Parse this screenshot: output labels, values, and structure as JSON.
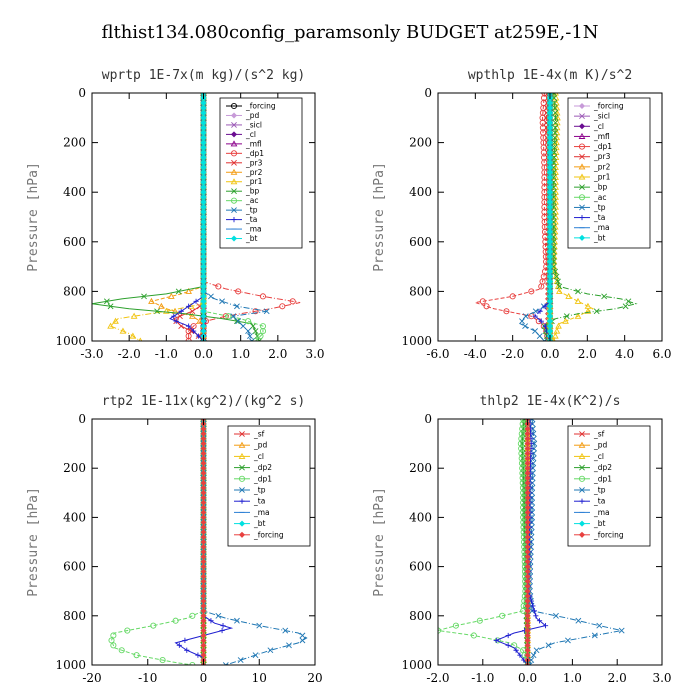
{
  "figure_title": "flthist134.080config_paramsonly  BUDGET at259E,-1N",
  "chart_data": [
    {
      "type": "line",
      "title": "wprtp  1E-7x(m kg)/(s^2 kg)",
      "ylabel": "Pressure [hPa]",
      "xlim": [
        -3.0,
        3.0
      ],
      "ylim": [
        1000,
        0
      ],
      "xticks": [
        "-3.0",
        "-2.0",
        "-1.0",
        "0.0",
        "1.0",
        "2.0",
        "3.0"
      ],
      "yticks": [
        "0",
        "200",
        "400",
        "600",
        "800",
        "1000"
      ],
      "legend_position": "top-right",
      "series": [
        {
          "name": "_forcing",
          "color": "#000000",
          "marker": "circle",
          "p": [
            0,
            1000
          ],
          "v": [
            0,
            0
          ]
        },
        {
          "name": "_pd",
          "color": "#c79ad8",
          "marker": "diamond",
          "p": [
            0,
            1000
          ],
          "v": [
            0,
            0
          ]
        },
        {
          "name": "_sicl",
          "color": "#9b59b6",
          "marker": "x",
          "p": [
            0,
            1000
          ],
          "v": [
            0,
            0
          ]
        },
        {
          "name": "_cl",
          "color": "#6a0d91",
          "marker": "diamond",
          "p": [
            0,
            1000
          ],
          "v": [
            0,
            0
          ]
        },
        {
          "name": "_mfl",
          "color": "#8b008b",
          "marker": "triangle",
          "p": [
            0,
            1000
          ],
          "v": [
            0,
            0
          ]
        },
        {
          "name": "_dp1",
          "color": "#e8403f",
          "marker": "circle",
          "p": [
            0,
            760,
            790,
            820,
            845,
            870,
            900,
            930,
            960,
            1000
          ],
          "v": [
            0,
            0,
            0.6,
            1.6,
            2.6,
            1.8,
            0.6,
            -0.2,
            -0.4,
            -0.4
          ]
        },
        {
          "name": "_pr3",
          "color": "#e03030",
          "marker": "x",
          "p": [
            0,
            850,
            880,
            910,
            940,
            970,
            1000
          ],
          "v": [
            0,
            0,
            -0.3,
            -0.8,
            -0.6,
            -0.2,
            0
          ]
        },
        {
          "name": "_pr2",
          "color": "#f39c12",
          "marker": "triangle",
          "p": [
            0,
            780,
            810,
            840,
            870,
            900,
            930,
            1000
          ],
          "v": [
            0,
            0,
            -0.6,
            -1.4,
            -1.0,
            -0.3,
            0,
            0
          ]
        },
        {
          "name": "_pr1",
          "color": "#f1c40f",
          "marker": "triangle",
          "p": [
            0,
            850,
            880,
            910,
            940,
            970,
            1000
          ],
          "v": [
            0,
            0,
            -1.0,
            -2.3,
            -2.5,
            -2.0,
            -1.7
          ]
        },
        {
          "name": "_bp",
          "color": "#2ca02c",
          "marker": "x",
          "p": [
            0,
            780,
            810,
            830,
            850,
            870,
            890,
            910,
            930,
            960,
            1000
          ],
          "v": [
            0,
            0,
            -1.0,
            -2.2,
            -3.0,
            -2.0,
            -0.5,
            0.5,
            1.3,
            1.4,
            1.5
          ]
        },
        {
          "name": "_ac",
          "color": "#66d966",
          "marker": "circle",
          "p": [
            0,
            880,
            910,
            940,
            970,
            1000
          ],
          "v": [
            0,
            0,
            1.0,
            1.6,
            1.6,
            1.4
          ]
        },
        {
          "name": "_tp",
          "color": "#1f77b4",
          "marker": "x",
          "p": [
            0,
            800,
            830,
            860,
            880,
            900,
            930,
            960,
            1000
          ],
          "v": [
            0,
            0,
            0.3,
            0.9,
            1.7,
            0.8,
            1.0,
            1.2,
            1.3
          ]
        },
        {
          "name": "_ta",
          "color": "#1f1fd0",
          "marker": "plus",
          "p": [
            0,
            820,
            850,
            880,
            910,
            940,
            1000
          ],
          "v": [
            0,
            0,
            -0.3,
            -0.6,
            -0.9,
            -0.4,
            0
          ]
        },
        {
          "name": "_ma",
          "color": "#2b7fd4",
          "marker": "dash",
          "p": [
            0,
            1000
          ],
          "v": [
            0,
            0
          ]
        },
        {
          "name": "_bt",
          "color": "#00e0e0",
          "marker": "diamond",
          "p": [
            0,
            1000
          ],
          "v": [
            0,
            0
          ]
        }
      ]
    },
    {
      "type": "line",
      "title": "wpthlp  1E-4x(m K)/s^2",
      "ylabel": "Pressure [hPa]",
      "xlim": [
        -6.0,
        6.0
      ],
      "ylim": [
        1000,
        0
      ],
      "xticks": [
        "-6.0",
        "-4.0",
        "-2.0",
        "0.0",
        "2.0",
        "4.0",
        "6.0"
      ],
      "yticks": [
        "0",
        "200",
        "400",
        "600",
        "800",
        "1000"
      ],
      "legend_position": "top-right",
      "series": [
        {
          "name": "_forcing",
          "color": "#c79ad8",
          "marker": "diamond",
          "p": [
            0,
            1000
          ],
          "v": [
            0,
            0
          ]
        },
        {
          "name": "_sicl",
          "color": "#9b59b6",
          "marker": "x",
          "p": [
            0,
            1000
          ],
          "v": [
            0,
            0
          ]
        },
        {
          "name": "_cl",
          "color": "#6a0d91",
          "marker": "diamond",
          "p": [
            0,
            1000
          ],
          "v": [
            0,
            0
          ]
        },
        {
          "name": "_mfl",
          "color": "#8b008b",
          "marker": "triangle",
          "p": [
            0,
            1000
          ],
          "v": [
            0,
            0
          ]
        },
        {
          "name": "_dp1",
          "color": "#e8403f",
          "marker": "circle",
          "p": [
            0,
            100,
            300,
            500,
            700,
            790,
            820,
            845,
            870,
            900,
            930,
            960,
            1000
          ],
          "v": [
            -0.3,
            -0.4,
            -0.3,
            -0.3,
            -0.2,
            -0.5,
            -2.0,
            -4.0,
            -3.0,
            -1.0,
            -0.4,
            -0.2,
            -0.1
          ]
        },
        {
          "name": "_pr3",
          "color": "#e03030",
          "marker": "x",
          "p": [
            0,
            100,
            300,
            500,
            700,
            1000
          ],
          "v": [
            -0.1,
            -0.2,
            -0.1,
            -0.1,
            -0.1,
            -0.1
          ]
        },
        {
          "name": "_pr2",
          "color": "#f39c12",
          "marker": "triangle",
          "p": [
            0,
            1000
          ],
          "v": [
            0,
            0
          ]
        },
        {
          "name": "_pr1",
          "color": "#f1c40f",
          "marker": "triangle",
          "p": [
            0,
            100,
            300,
            500,
            700,
            800,
            840,
            870,
            900,
            930,
            1000
          ],
          "v": [
            0.3,
            0.4,
            0.3,
            0.3,
            0.2,
            0.5,
            1.5,
            2.3,
            1.5,
            0.5,
            0.2
          ]
        },
        {
          "name": "_bp",
          "color": "#2ca02c",
          "marker": "x",
          "p": [
            0,
            100,
            300,
            500,
            700,
            780,
            810,
            830,
            850,
            870,
            890,
            910,
            940,
            970,
            1000
          ],
          "v": [
            0.2,
            0.3,
            0.2,
            0.2,
            0.2,
            0.5,
            2.0,
            3.8,
            4.6,
            3.5,
            1.5,
            0.3,
            -0.3,
            -0.2,
            -0.1
          ]
        },
        {
          "name": "_ac",
          "color": "#66d966",
          "marker": "circle",
          "p": [
            0,
            1000
          ],
          "v": [
            0,
            0
          ]
        },
        {
          "name": "_tp",
          "color": "#1f77b4",
          "marker": "x",
          "p": [
            0,
            840,
            870,
            900,
            930,
            960,
            1000
          ],
          "v": [
            0,
            0,
            -0.5,
            -1.3,
            -1.6,
            -0.8,
            -0.3
          ]
        },
        {
          "name": "_ta",
          "color": "#1f1fd0",
          "marker": "plus",
          "p": [
            0,
            840,
            870,
            900,
            930,
            1000
          ],
          "v": [
            0,
            0,
            -0.4,
            -0.8,
            -0.3,
            0
          ]
        },
        {
          "name": "_ma",
          "color": "#2b7fd4",
          "marker": "dash",
          "p": [
            0,
            1000
          ],
          "v": [
            0,
            0
          ]
        },
        {
          "name": "_bt",
          "color": "#00e0e0",
          "marker": "diamond",
          "p": [
            0,
            1000
          ],
          "v": [
            0,
            0
          ]
        }
      ]
    },
    {
      "type": "line",
      "title": "rtp2  1E-11x(kg^2)/(kg^2 s)",
      "ylabel": "Pressure [hPa]",
      "xlim": [
        -20,
        20
      ],
      "ylim": [
        1000,
        0
      ],
      "xticks": [
        "-20",
        "-10",
        "0",
        "10",
        "20"
      ],
      "yticks": [
        "0",
        "200",
        "400",
        "600",
        "800",
        "1000"
      ],
      "legend_position": "top-right",
      "series": [
        {
          "name": "_sf",
          "color": "#e03030",
          "marker": "x",
          "p": [
            0,
            1000
          ],
          "v": [
            0,
            0
          ]
        },
        {
          "name": "_pd",
          "color": "#f39c12",
          "marker": "triangle",
          "p": [
            0,
            1000
          ],
          "v": [
            0,
            0
          ]
        },
        {
          "name": "_cl",
          "color": "#f1c40f",
          "marker": "triangle",
          "p": [
            0,
            1000
          ],
          "v": [
            0,
            0
          ]
        },
        {
          "name": "_dp2",
          "color": "#2ca02c",
          "marker": "x",
          "p": [
            0,
            1000
          ],
          "v": [
            0,
            0
          ]
        },
        {
          "name": "_dp1",
          "color": "#66d966",
          "marker": "circle",
          "p": [
            0,
            780,
            810,
            840,
            870,
            900,
            930,
            960,
            990,
            1000
          ],
          "v": [
            0,
            0,
            -3.0,
            -9.0,
            -16.0,
            -16.5,
            -16.0,
            -12.0,
            -5.0,
            -2.0
          ]
        },
        {
          "name": "_tp",
          "color": "#1f77b4",
          "marker": "x",
          "p": [
            0,
            780,
            810,
            840,
            870,
            890,
            910,
            940,
            970,
            1000
          ],
          "v": [
            0,
            0,
            4.0,
            10.0,
            17.0,
            18.5,
            17.0,
            12.0,
            8.0,
            4.0
          ]
        },
        {
          "name": "_ta",
          "color": "#1f1fd0",
          "marker": "plus",
          "p": [
            0,
            800,
            830,
            850,
            880,
            910,
            940,
            970,
            1000
          ],
          "v": [
            0,
            0,
            2.0,
            5.0,
            0.0,
            -5.0,
            -3.0,
            0.0,
            0.0
          ]
        },
        {
          "name": "_ma",
          "color": "#2b7fd4",
          "marker": "dash",
          "p": [
            0,
            1000
          ],
          "v": [
            0,
            0
          ]
        },
        {
          "name": "_bt",
          "color": "#00e0e0",
          "marker": "diamond",
          "p": [
            0,
            1000
          ],
          "v": [
            0,
            0
          ]
        },
        {
          "name": "_forcing",
          "color": "#e8403f",
          "marker": "diamond",
          "p": [
            0,
            1000
          ],
          "v": [
            0,
            0
          ]
        }
      ]
    },
    {
      "type": "line",
      "title": "thlp2  1E-4x(K^2)/s",
      "ylabel": "Pressure [hPa]",
      "xlim": [
        -2.0,
        3.0
      ],
      "ylim": [
        1000,
        0
      ],
      "xticks": [
        "-2.0",
        "-1.0",
        "0.0",
        "1.0",
        "2.0",
        "3.0"
      ],
      "yticks": [
        "0",
        "200",
        "400",
        "600",
        "800",
        "1000"
      ],
      "legend_position": "top-right",
      "series": [
        {
          "name": "_sf",
          "color": "#e03030",
          "marker": "x",
          "p": [
            0,
            1000
          ],
          "v": [
            0,
            0
          ]
        },
        {
          "name": "_pd",
          "color": "#f39c12",
          "marker": "triangle",
          "p": [
            0,
            1000
          ],
          "v": [
            0,
            0
          ]
        },
        {
          "name": "_cl",
          "color": "#f1c40f",
          "marker": "triangle",
          "p": [
            0,
            1000
          ],
          "v": [
            0,
            0
          ]
        },
        {
          "name": "_dp2",
          "color": "#2ca02c",
          "marker": "x",
          "p": [
            0,
            100,
            200,
            300,
            400,
            500,
            600,
            700,
            780,
            1000
          ],
          "v": [
            -0.08,
            -0.12,
            -0.1,
            -0.08,
            -0.08,
            -0.06,
            -0.05,
            -0.04,
            -0.03,
            0
          ]
        },
        {
          "name": "_dp1",
          "color": "#66d966",
          "marker": "circle",
          "p": [
            0,
            100,
            200,
            300,
            400,
            500,
            600,
            700,
            780,
            810,
            840,
            860,
            880,
            910,
            940,
            1000
          ],
          "v": [
            -0.1,
            -0.15,
            -0.12,
            -0.1,
            -0.1,
            -0.08,
            -0.06,
            -0.05,
            -0.1,
            -0.8,
            -1.6,
            -2.0,
            -1.2,
            -0.4,
            -0.1,
            0
          ]
        },
        {
          "name": "_tp",
          "color": "#1f77b4",
          "marker": "x",
          "p": [
            0,
            100,
            200,
            300,
            400,
            500,
            600,
            700,
            780,
            810,
            840,
            860,
            880,
            910,
            940,
            970,
            1000
          ],
          "v": [
            0.1,
            0.15,
            0.12,
            0.1,
            0.1,
            0.08,
            0.06,
            0.05,
            0.1,
            0.9,
            1.6,
            2.1,
            1.5,
            0.6,
            0.2,
            0.1,
            0.05
          ]
        },
        {
          "name": "_ta",
          "color": "#1f1fd0",
          "marker": "plus",
          "p": [
            0,
            100,
            200,
            300,
            400,
            500,
            600,
            700,
            810,
            840,
            870,
            900,
            930,
            1000
          ],
          "v": [
            0.05,
            0.08,
            0.06,
            0.05,
            0.05,
            0.04,
            0.03,
            0.02,
            0.2,
            0.4,
            -0.3,
            -0.7,
            -0.3,
            0
          ]
        },
        {
          "name": "_ma",
          "color": "#2b7fd4",
          "marker": "dash",
          "p": [
            0,
            1000
          ],
          "v": [
            0,
            0
          ]
        },
        {
          "name": "_bt",
          "color": "#00e0e0",
          "marker": "diamond",
          "p": [
            0,
            1000
          ],
          "v": [
            0,
            0
          ]
        },
        {
          "name": "_forcing",
          "color": "#e8403f",
          "marker": "diamond",
          "p": [
            0,
            1000
          ],
          "v": [
            0,
            0
          ]
        }
      ]
    }
  ]
}
